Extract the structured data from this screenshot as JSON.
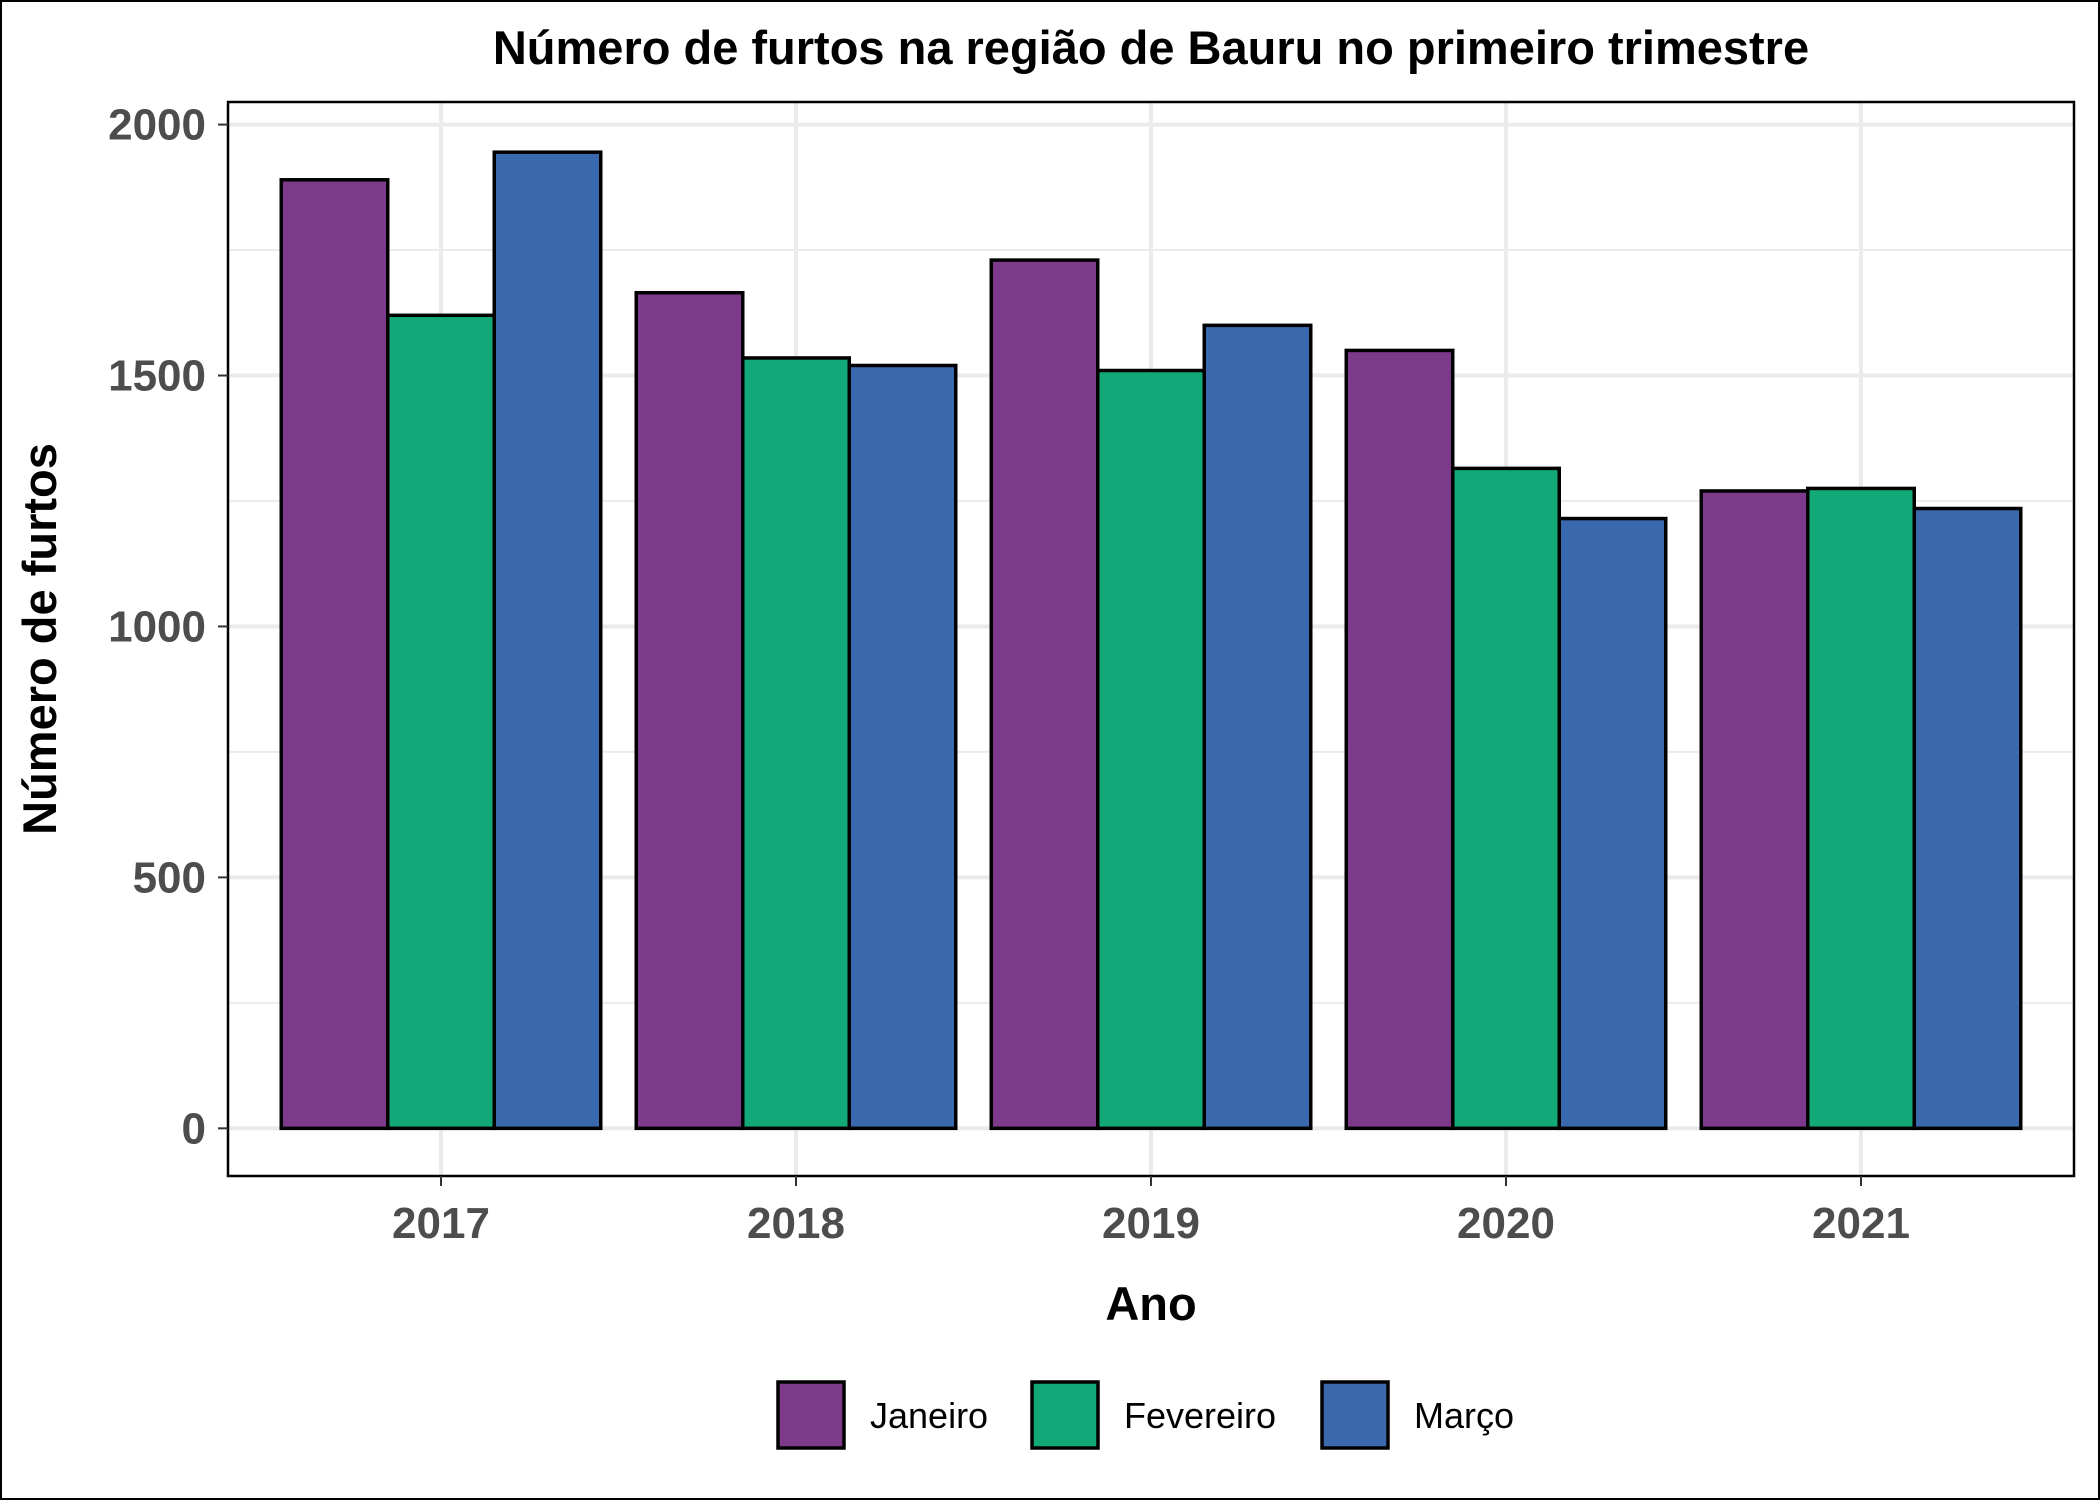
{
  "chart_data": {
    "type": "bar",
    "title": "Número de furtos na região de Bauru no primeiro trimestre",
    "xlabel": "Ano",
    "ylabel": "Número de furtos",
    "categories": [
      "2017",
      "2018",
      "2019",
      "2020",
      "2021"
    ],
    "series": [
      {
        "name": "Janeiro",
        "color": "#7e3a8a",
        "values": [
          1890,
          1665,
          1730,
          1550,
          1270
        ]
      },
      {
        "name": "Fevereiro",
        "color": "#12a878",
        "values": [
          1620,
          1535,
          1510,
          1315,
          1275
        ]
      },
      {
        "name": "Março",
        "color": "#3a69ae",
        "values": [
          1945,
          1520,
          1600,
          1215,
          1235
        ]
      }
    ],
    "yticks": [
      0,
      500,
      1000,
      1500,
      2000
    ],
    "ylim": [
      -95,
      2045
    ],
    "grid": true,
    "legend_position": "bottom"
  }
}
